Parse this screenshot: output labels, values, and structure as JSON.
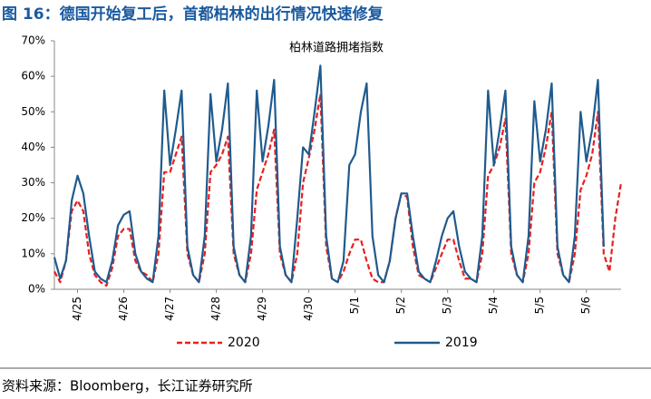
{
  "header": {
    "title": "图 16：德国开始复工后，首都柏林的出行情况快速修复"
  },
  "footer": {
    "source": "资料来源：Bloomberg，长江证券研究所"
  },
  "chart_data": {
    "type": "line",
    "title": "柏林道路拥堵指数",
    "x": [
      0,
      0.125,
      0.25,
      0.375,
      0.5,
      0.625,
      0.75,
      0.875,
      1,
      1.125,
      1.25,
      1.375,
      1.5,
      1.625,
      1.75,
      1.875,
      2,
      2.125,
      2.25,
      2.375,
      2.5,
      2.625,
      2.75,
      2.875,
      3,
      3.125,
      3.25,
      3.375,
      3.5,
      3.625,
      3.75,
      3.875,
      4,
      4.125,
      4.25,
      4.375,
      4.5,
      4.625,
      4.75,
      4.875,
      5,
      5.125,
      5.25,
      5.375,
      5.5,
      5.625,
      5.75,
      5.875,
      6,
      6.125,
      6.25,
      6.375,
      6.5,
      6.625,
      6.75,
      6.875,
      7,
      7.125,
      7.25,
      7.375,
      7.5,
      7.625,
      7.75,
      7.875,
      8,
      8.125,
      8.25,
      8.375,
      8.5,
      8.625,
      8.75,
      8.875,
      9,
      9.125,
      9.25,
      9.375,
      9.5,
      9.625,
      9.75,
      9.875,
      10,
      10.125,
      10.25,
      10.375,
      10.5,
      10.625,
      10.75,
      10.875,
      11,
      11.125,
      11.25,
      11.375,
      11.5,
      11.625,
      11.75,
      11.875,
      12,
      12.125,
      12.25
    ],
    "series": [
      {
        "name": "2020",
        "color": "#e8201f",
        "dashed": true,
        "values": [
          5,
          2,
          8,
          22,
          25,
          22,
          10,
          4,
          2,
          1,
          6,
          15,
          17,
          17,
          8,
          5,
          4,
          2,
          10,
          33,
          33,
          38,
          43,
          10,
          4,
          2,
          10,
          33,
          35,
          38,
          43,
          10,
          4,
          2,
          10,
          28,
          33,
          38,
          45,
          10,
          4,
          2,
          10,
          30,
          37,
          45,
          55,
          12,
          3,
          2,
          5,
          10,
          14,
          14,
          8,
          3,
          2,
          2,
          8,
          20,
          27,
          26,
          12,
          4,
          3,
          2,
          6,
          10,
          14,
          14,
          8,
          3,
          3,
          2,
          10,
          32,
          35,
          40,
          48,
          10,
          4,
          2,
          10,
          30,
          33,
          40,
          50,
          10,
          4,
          2,
          10,
          28,
          32,
          38,
          50,
          10,
          5,
          20,
          30
        ]
      },
      {
        "name": "2019",
        "color": "#1f5b8e",
        "dashed": false,
        "values": [
          9,
          3,
          8,
          25,
          32,
          27,
          15,
          5,
          3,
          2,
          8,
          18,
          21,
          22,
          10,
          5,
          3,
          2,
          15,
          56,
          35,
          45,
          56,
          12,
          4,
          2,
          15,
          55,
          36,
          45,
          58,
          12,
          4,
          2,
          15,
          56,
          36,
          46,
          59,
          12,
          4,
          2,
          20,
          40,
          38,
          50,
          63,
          15,
          3,
          2,
          8,
          35,
          38,
          50,
          58,
          15,
          4,
          2,
          8,
          20,
          27,
          27,
          15,
          5,
          3,
          2,
          8,
          15,
          20,
          22,
          12,
          5,
          3,
          2,
          15,
          56,
          35,
          45,
          56,
          12,
          4,
          2,
          15,
          53,
          36,
          45,
          58,
          12,
          4,
          2,
          15,
          50,
          36,
          45,
          59,
          12,
          null,
          null,
          null
        ]
      }
    ],
    "xlim": [
      0,
      12.25
    ],
    "xticks": [
      {
        "value": 0.5,
        "label": "4/25"
      },
      {
        "value": 1.5,
        "label": "4/26"
      },
      {
        "value": 2.5,
        "label": "4/27"
      },
      {
        "value": 3.5,
        "label": "4/28"
      },
      {
        "value": 4.5,
        "label": "4/29"
      },
      {
        "value": 5.5,
        "label": "4/30"
      },
      {
        "value": 6.5,
        "label": "5/1"
      },
      {
        "value": 7.5,
        "label": "5/2"
      },
      {
        "value": 8.5,
        "label": "5/3"
      },
      {
        "value": 9.5,
        "label": "5/4"
      },
      {
        "value": 10.5,
        "label": "5/5"
      },
      {
        "value": 11.5,
        "label": "5/6"
      }
    ],
    "ylim": [
      0,
      70
    ],
    "yticks": [
      {
        "value": 0,
        "label": "0%"
      },
      {
        "value": 10,
        "label": "10%"
      },
      {
        "value": 20,
        "label": "20%"
      },
      {
        "value": 30,
        "label": "30%"
      },
      {
        "value": 40,
        "label": "40%"
      },
      {
        "value": 50,
        "label": "50%"
      },
      {
        "value": 60,
        "label": "60%"
      },
      {
        "value": 70,
        "label": "70%"
      }
    ],
    "grid": false,
    "legend": "bottom"
  }
}
